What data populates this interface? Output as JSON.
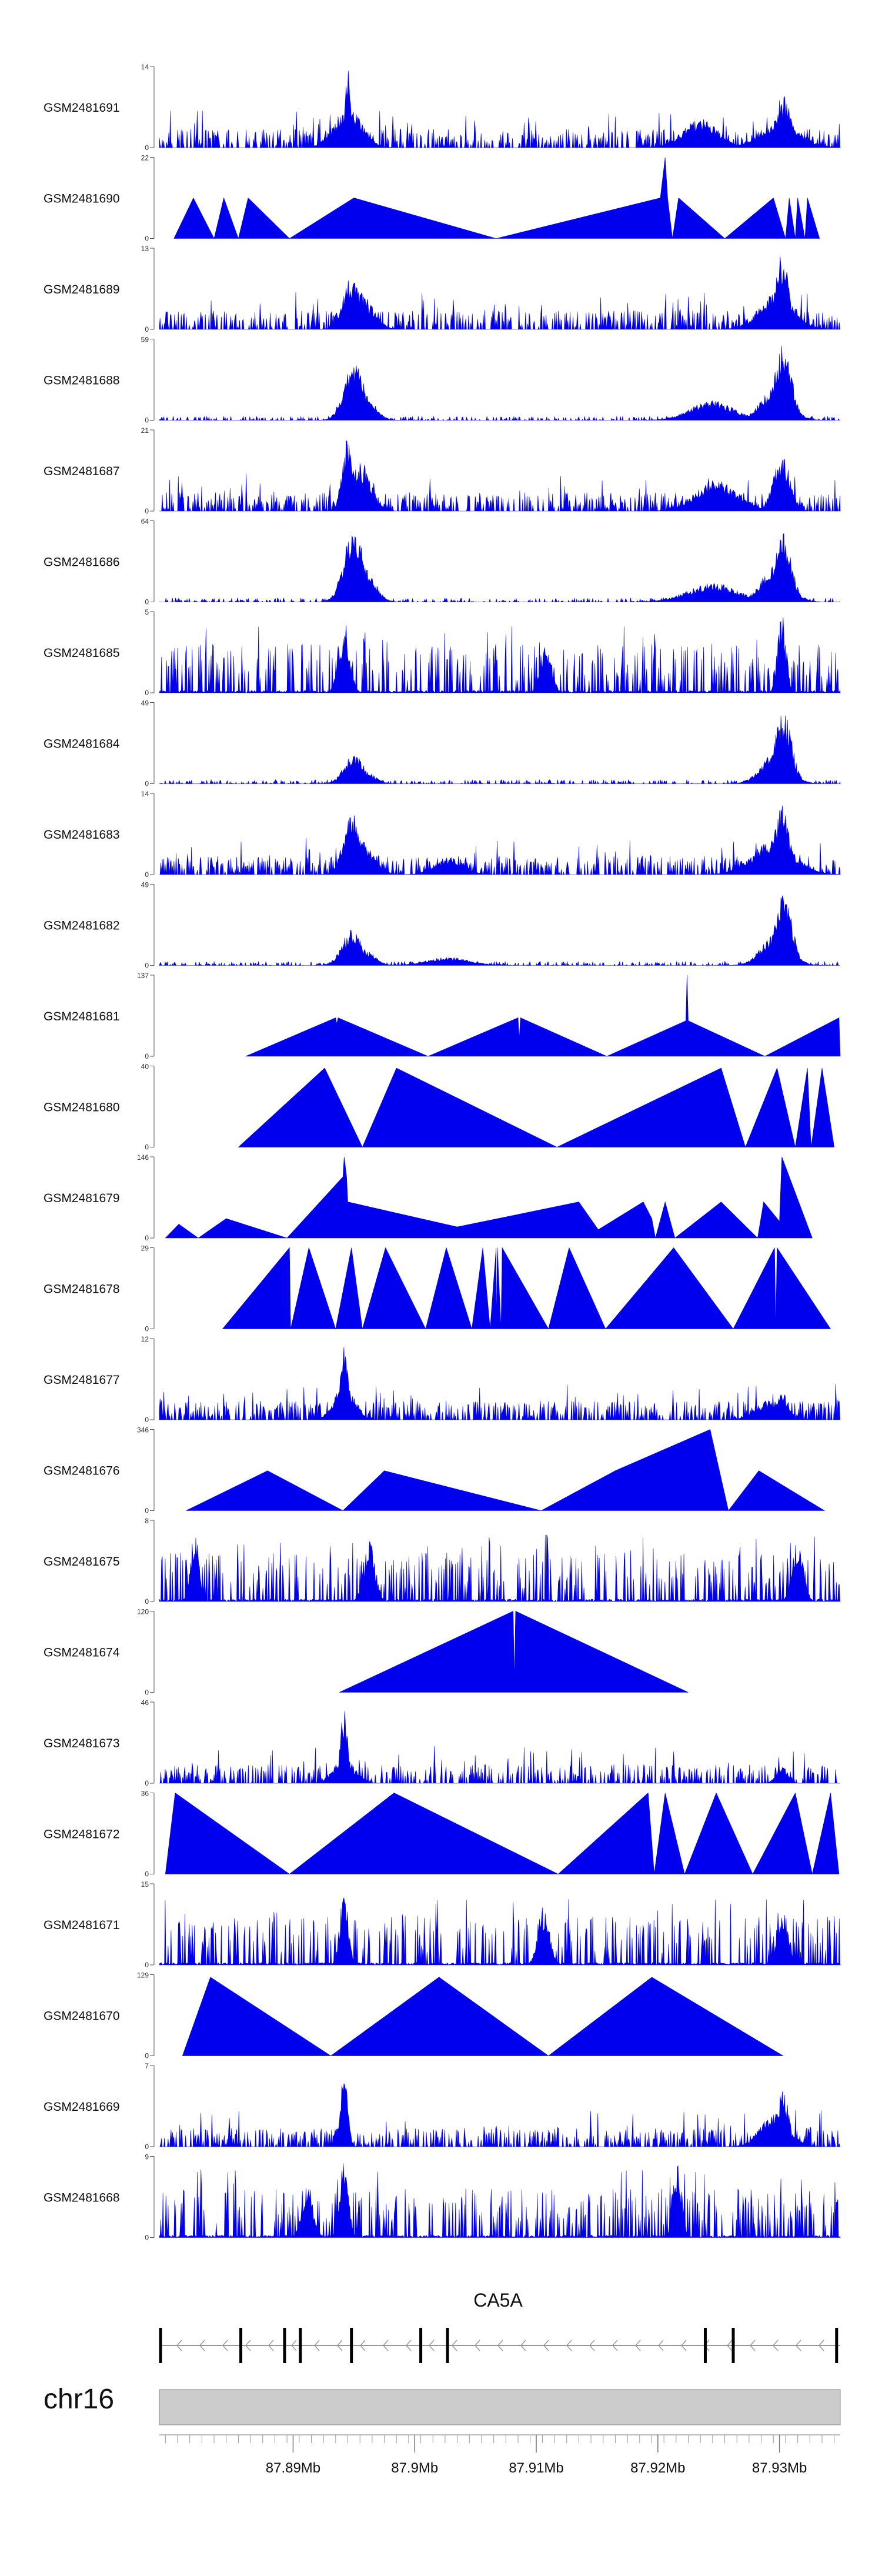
{
  "chart_data": {
    "type": "area",
    "title": "",
    "chromosome": "chr16",
    "x_unit": "Mb",
    "xlim": [
      87.879,
      87.935
    ],
    "x_ticks": [
      87.89,
      87.9,
      87.91,
      87.92,
      87.93
    ],
    "x_tick_labels": [
      "87.89Mb",
      "87.9Mb",
      "87.91Mb",
      "87.92Mb",
      "87.93Mb"
    ],
    "gene": {
      "name": "CA5A",
      "start": 87.879,
      "end": 87.935,
      "strand": "-",
      "exons": [
        87.8791,
        87.8857,
        87.8893,
        87.8906,
        87.8948,
        87.9005,
        87.9027,
        87.9239,
        87.9262,
        87.9347
      ]
    },
    "colors": {
      "signal": "#0000ee",
      "ideogram": "#cccccc",
      "axis": "#555555"
    },
    "tracks": [
      {
        "name": "GSM2481691",
        "ymax": 14,
        "style": "dense",
        "peaks": [
          [
            87.8945,
            14,
            0.0004
          ],
          [
            87.8945,
            7,
            0.002
          ],
          [
            87.9235,
            5,
            0.0025
          ],
          [
            87.9303,
            9,
            0.0012
          ],
          [
            87.93,
            4,
            0.003
          ]
        ]
      },
      {
        "name": "GSM2481690",
        "ymax": 22,
        "style": "triangles",
        "points": [
          [
            87.8802,
            0
          ],
          [
            87.8818,
            11
          ],
          [
            87.8835,
            0
          ],
          [
            87.8843,
            11
          ],
          [
            87.8855,
            0
          ],
          [
            87.8863,
            11
          ],
          [
            87.8897,
            0
          ],
          [
            87.895,
            11
          ],
          [
            87.9067,
            0
          ],
          [
            87.9202,
            11
          ],
          [
            87.9206,
            22
          ],
          [
            87.9208,
            11
          ],
          [
            87.9212,
            0
          ],
          [
            87.9217,
            11
          ],
          [
            87.9255,
            0
          ],
          [
            87.9295,
            11
          ],
          [
            87.9305,
            0
          ],
          [
            87.9308,
            11
          ],
          [
            87.9313,
            0
          ],
          [
            87.9315,
            11
          ],
          [
            87.9321,
            0
          ],
          [
            87.9323,
            11
          ],
          [
            87.9333,
            0
          ]
        ]
      },
      {
        "name": "GSM2481689",
        "ymax": 13,
        "style": "dense",
        "peaks": [
          [
            87.8948,
            9,
            0.0012
          ],
          [
            87.8955,
            6,
            0.0018
          ],
          [
            87.9302,
            12,
            0.001
          ],
          [
            87.9298,
            6,
            0.0025
          ]
        ]
      },
      {
        "name": "GSM2481688",
        "ymax": 59,
        "style": "peaky",
        "peaks": [
          [
            87.895,
            45,
            0.0014
          ],
          [
            87.8958,
            20,
            0.0015
          ],
          [
            87.9245,
            15,
            0.003
          ],
          [
            87.9303,
            56,
            0.0012
          ],
          [
            87.9297,
            25,
            0.002
          ]
        ]
      },
      {
        "name": "GSM2481687",
        "ymax": 21,
        "style": "dense",
        "peaks": [
          [
            87.8945,
            20,
            0.0008
          ],
          [
            87.8955,
            13,
            0.0015
          ],
          [
            87.9248,
            8,
            0.003
          ],
          [
            87.9302,
            15,
            0.0012
          ]
        ]
      },
      {
        "name": "GSM2481686",
        "ymax": 64,
        "style": "peaky",
        "peaks": [
          [
            87.895,
            60,
            0.0014
          ],
          [
            87.8958,
            30,
            0.0015
          ],
          [
            87.9245,
            15,
            0.0035
          ],
          [
            87.9303,
            55,
            0.0012
          ],
          [
            87.9297,
            30,
            0.002
          ]
        ]
      },
      {
        "name": "GSM2481685",
        "ymax": 5,
        "style": "spiky",
        "peaks": [
          [
            87.9302,
            5,
            0.0006
          ],
          [
            87.8942,
            4,
            0.0008
          ],
          [
            87.9108,
            3,
            0.0008
          ]
        ]
      },
      {
        "name": "GSM2481684",
        "ymax": 49,
        "style": "peaky",
        "peaks": [
          [
            87.895,
            18,
            0.0014
          ],
          [
            87.8958,
            8,
            0.0015
          ],
          [
            87.9303,
            45,
            0.0012
          ],
          [
            87.9297,
            20,
            0.002
          ]
        ]
      },
      {
        "name": "GSM2481683",
        "ymax": 14,
        "style": "dense",
        "peaks": [
          [
            87.8948,
            11,
            0.0012
          ],
          [
            87.8955,
            6,
            0.0018
          ],
          [
            87.9028,
            3,
            0.002
          ],
          [
            87.9302,
            13,
            0.001
          ],
          [
            87.9295,
            6,
            0.003
          ]
        ]
      },
      {
        "name": "GSM2481682",
        "ymax": 49,
        "style": "peaky",
        "peaks": [
          [
            87.8948,
            22,
            0.0014
          ],
          [
            87.8958,
            10,
            0.0015
          ],
          [
            87.9028,
            5,
            0.003
          ],
          [
            87.9303,
            46,
            0.0012
          ],
          [
            87.9297,
            20,
            0.002
          ]
        ]
      },
      {
        "name": "GSM2481681",
        "ymax": 137,
        "style": "triangles",
        "points": [
          [
            87.8861,
            0
          ],
          [
            87.8935,
            65
          ],
          [
            87.8936,
            55
          ],
          [
            87.8937,
            65
          ],
          [
            87.9011,
            0
          ],
          [
            87.9085,
            65
          ],
          [
            87.9086,
            30
          ],
          [
            87.9087,
            65
          ],
          [
            87.9158,
            0
          ],
          [
            87.9223,
            60
          ],
          [
            87.9224,
            137
          ],
          [
            87.9225,
            60
          ],
          [
            87.9288,
            0
          ],
          [
            87.9349,
            65
          ],
          [
            87.935,
            0
          ]
        ]
      },
      {
        "name": "GSM2481680",
        "ymax": 40,
        "style": "triangles",
        "points": [
          [
            87.8855,
            0
          ],
          [
            87.8926,
            39
          ],
          [
            87.8957,
            0
          ],
          [
            87.8985,
            39
          ],
          [
            87.9117,
            0
          ],
          [
            87.9252,
            39
          ],
          [
            87.9272,
            0
          ],
          [
            87.9298,
            39
          ],
          [
            87.9313,
            0
          ],
          [
            87.9323,
            39
          ],
          [
            87.9326,
            0
          ],
          [
            87.9335,
            39
          ],
          [
            87.9345,
            0
          ]
        ]
      },
      {
        "name": "GSM2481679",
        "ymax": 146,
        "style": "triangles",
        "points": [
          [
            87.8795,
            0
          ],
          [
            87.8806,
            25
          ],
          [
            87.8822,
            0
          ],
          [
            87.8845,
            35
          ],
          [
            87.8895,
            0
          ],
          [
            87.8941,
            110
          ],
          [
            87.8942,
            146
          ],
          [
            87.8944,
            110
          ],
          [
            87.8945,
            65
          ],
          [
            87.9035,
            20
          ],
          [
            87.9135,
            65
          ],
          [
            87.9151,
            15
          ],
          [
            87.9188,
            65
          ],
          [
            87.9195,
            35
          ],
          [
            87.9198,
            0
          ],
          [
            87.9206,
            65
          ],
          [
            87.9214,
            0
          ],
          [
            87.9252,
            65
          ],
          [
            87.9282,
            0
          ],
          [
            87.9287,
            65
          ],
          [
            87.93,
            30
          ],
          [
            87.9302,
            146
          ],
          [
            87.9327,
            0
          ]
        ]
      },
      {
        "name": "GSM2481678",
        "ymax": 29,
        "style": "triangles",
        "points": [
          [
            87.8842,
            0
          ],
          [
            87.8897,
            29
          ],
          [
            87.8898,
            0
          ],
          [
            87.8913,
            29
          ],
          [
            87.8935,
            0
          ],
          [
            87.8948,
            29
          ],
          [
            87.8957,
            0
          ],
          [
            87.8976,
            29
          ],
          [
            87.9009,
            0
          ],
          [
            87.9026,
            29
          ],
          [
            87.9047,
            0
          ],
          [
            87.9056,
            29
          ],
          [
            87.9062,
            0
          ],
          [
            87.9067,
            29
          ],
          [
            87.9067,
            0
          ],
          [
            87.9068,
            29
          ],
          [
            87.9071,
            0
          ],
          [
            87.9072,
            29
          ],
          [
            87.911,
            0
          ],
          [
            87.9127,
            29
          ],
          [
            87.9157,
            0
          ],
          [
            87.9213,
            29
          ],
          [
            87.9262,
            0
          ],
          [
            87.9296,
            29
          ],
          [
            87.9297,
            0
          ],
          [
            87.9298,
            29
          ],
          [
            87.9342,
            0
          ]
        ]
      },
      {
        "name": "GSM2481677",
        "ymax": 12,
        "style": "dense",
        "peaks": [
          [
            87.8942,
            12,
            0.0005
          ],
          [
            87.8942,
            5,
            0.0015
          ],
          [
            87.9302,
            4,
            0.001
          ],
          [
            87.9292,
            3,
            0.002
          ]
        ]
      },
      {
        "name": "GSM2481676",
        "ymax": 346,
        "style": "triangles",
        "points": [
          [
            87.8812,
            0
          ],
          [
            87.8879,
            170
          ],
          [
            87.8941,
            0
          ],
          [
            87.8975,
            170
          ],
          [
            87.9104,
            0
          ],
          [
            87.9165,
            170
          ],
          [
            87.9243,
            346
          ],
          [
            87.9258,
            0
          ],
          [
            87.9283,
            170
          ],
          [
            87.9337,
            0
          ]
        ]
      },
      {
        "name": "GSM2481675",
        "ymax": 8,
        "style": "spiky",
        "peaks": [
          [
            87.8819,
            7,
            0.0006
          ],
          [
            87.8963,
            6,
            0.0008
          ],
          [
            87.9315,
            6,
            0.0008
          ]
        ]
      },
      {
        "name": "GSM2481674",
        "ymax": 120,
        "style": "triangles",
        "points": [
          [
            87.8938,
            0
          ],
          [
            87.9081,
            120
          ],
          [
            87.9082,
            20
          ],
          [
            87.9083,
            120
          ],
          [
            87.9225,
            0
          ]
        ]
      },
      {
        "name": "GSM2481673",
        "ymax": 46,
        "style": "dense",
        "peaks": [
          [
            87.8942,
            46,
            0.0005
          ],
          [
            87.8942,
            15,
            0.0015
          ],
          [
            87.9302,
            10,
            0.0008
          ]
        ]
      },
      {
        "name": "GSM2481672",
        "ymax": 36,
        "style": "triangles",
        "points": [
          [
            87.8795,
            0
          ],
          [
            87.8803,
            36
          ],
          [
            87.8897,
            0
          ],
          [
            87.8983,
            36
          ],
          [
            87.9118,
            0
          ],
          [
            87.9192,
            36
          ],
          [
            87.9197,
            0
          ],
          [
            87.9206,
            36
          ],
          [
            87.9222,
            0
          ],
          [
            87.9248,
            36
          ],
          [
            87.9278,
            0
          ],
          [
            87.9313,
            36
          ],
          [
            87.9327,
            0
          ],
          [
            87.9342,
            36
          ],
          [
            87.9349,
            0
          ]
        ]
      },
      {
        "name": "GSM2481671",
        "ymax": 15,
        "style": "spiky",
        "peaks": [
          [
            87.8942,
            14,
            0.0006
          ],
          [
            87.9106,
            11,
            0.0008
          ],
          [
            87.9303,
            10,
            0.0008
          ]
        ]
      },
      {
        "name": "GSM2481670",
        "ymax": 129,
        "style": "triangles",
        "points": [
          [
            87.8809,
            0
          ],
          [
            87.8832,
            125
          ],
          [
            87.8931,
            0
          ],
          [
            87.902,
            125
          ],
          [
            87.911,
            0
          ],
          [
            87.9195,
            125
          ],
          [
            87.9303,
            0
          ]
        ]
      },
      {
        "name": "GSM2481669",
        "ymax": 7,
        "style": "dense",
        "peaks": [
          [
            87.8942,
            7,
            0.0005
          ],
          [
            87.9303,
            5,
            0.0008
          ],
          [
            87.9296,
            3,
            0.002
          ]
        ]
      },
      {
        "name": "GSM2481668",
        "ymax": 9,
        "style": "spiky",
        "peaks": [
          [
            87.8942,
            9,
            0.0006
          ],
          [
            87.9216,
            9,
            0.0006
          ],
          [
            87.8912,
            6,
            0.0008
          ]
        ]
      }
    ]
  }
}
